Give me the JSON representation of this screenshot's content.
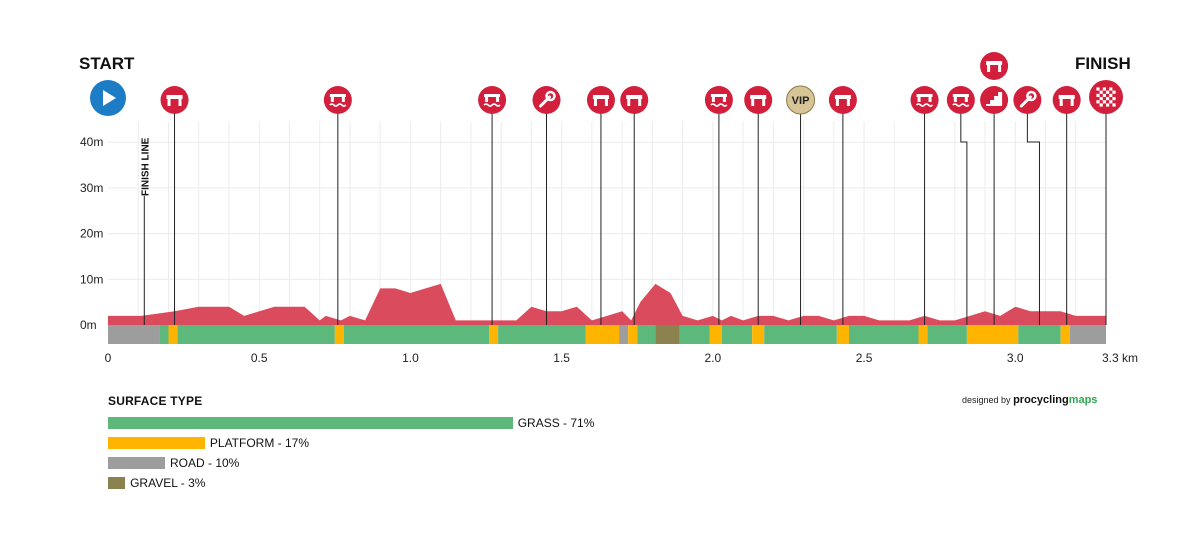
{
  "labels": {
    "start": "START",
    "finish": "FINISH",
    "finish_line": "FINISH LINE",
    "vip": "VIP"
  },
  "colors": {
    "profile": "#d6384b",
    "grass": "#5db87c",
    "platform": "#ffb400",
    "road": "#9d9d9d",
    "gravel": "#8b8250",
    "marker": "#d21f3c",
    "vip": "#d7c597",
    "start": "#1d7cc6"
  },
  "legend": {
    "title": "SURFACE TYPE",
    "items": [
      {
        "label": "GRASS - 71%",
        "percent": 71,
        "color": "#5db87c"
      },
      {
        "label": "PLATFORM - 17%",
        "percent": 17,
        "color": "#ffb400"
      },
      {
        "label": "ROAD - 10%",
        "percent": 10,
        "color": "#9d9d9d"
      },
      {
        "label": "GRAVEL - 3%",
        "percent": 3,
        "color": "#8b8250"
      }
    ]
  },
  "credit": {
    "prefix": "designed by",
    "brand_main": "procycling",
    "brand_accent": "maps"
  },
  "chart_data": {
    "type": "area",
    "xlabel": "",
    "ylabel": "",
    "xlim": [
      0,
      3.3
    ],
    "ylim": [
      0,
      45
    ],
    "x_ticks": [
      0,
      0.5,
      1.0,
      1.5,
      2.0,
      2.5,
      3.0,
      3.3
    ],
    "x_tick_labels": [
      "0",
      "0.5",
      "1.0",
      "1.5",
      "2.0",
      "2.5",
      "3.0",
      "3.3 km"
    ],
    "y_ticks": [
      0,
      10,
      20,
      30,
      40
    ],
    "y_tick_labels": [
      "0m",
      "10m",
      "20m",
      "30m",
      "40m"
    ],
    "grid": true,
    "profile": {
      "x": [
        0,
        0.11,
        0.22,
        0.3,
        0.4,
        0.45,
        0.55,
        0.65,
        0.7,
        0.72,
        0.77,
        0.8,
        0.85,
        0.9,
        0.95,
        1.0,
        1.05,
        1.1,
        1.15,
        1.35,
        1.4,
        1.45,
        1.5,
        1.55,
        1.6,
        1.65,
        1.7,
        1.73,
        1.76,
        1.81,
        1.86,
        1.9,
        1.95,
        2.0,
        2.03,
        2.06,
        2.1,
        2.15,
        2.2,
        2.25,
        2.3,
        2.35,
        2.4,
        2.45,
        2.5,
        2.55,
        2.6,
        2.65,
        2.7,
        2.75,
        2.8,
        2.85,
        2.9,
        2.95,
        3.0,
        3.05,
        3.1,
        3.15,
        3.2,
        3.3
      ],
      "y": [
        2,
        2,
        3,
        4,
        4,
        2,
        4,
        4,
        1,
        2,
        1,
        2,
        1,
        8,
        8,
        7,
        8,
        9,
        1,
        1,
        4,
        3,
        3,
        4,
        1,
        2,
        3,
        1,
        5,
        9,
        7,
        2,
        1,
        2,
        1,
        2,
        1,
        2,
        2,
        1,
        2,
        2,
        1,
        2,
        2,
        1,
        1,
        1,
        2,
        1,
        1,
        2,
        3,
        2,
        4,
        3,
        3,
        3,
        2,
        2
      ]
    },
    "surface": [
      {
        "from": 0,
        "to": 0.17,
        "type": "road"
      },
      {
        "from": 0.17,
        "to": 0.2,
        "type": "grass"
      },
      {
        "from": 0.2,
        "to": 0.23,
        "type": "platform"
      },
      {
        "from": 0.23,
        "to": 0.75,
        "type": "grass"
      },
      {
        "from": 0.75,
        "to": 0.78,
        "type": "platform"
      },
      {
        "from": 0.78,
        "to": 1.26,
        "type": "grass"
      },
      {
        "from": 1.26,
        "to": 1.29,
        "type": "platform"
      },
      {
        "from": 1.29,
        "to": 1.58,
        "type": "grass"
      },
      {
        "from": 1.58,
        "to": 1.69,
        "type": "platform"
      },
      {
        "from": 1.69,
        "to": 1.72,
        "type": "road"
      },
      {
        "from": 1.72,
        "to": 1.75,
        "type": "platform"
      },
      {
        "from": 1.75,
        "to": 1.81,
        "type": "grass"
      },
      {
        "from": 1.81,
        "to": 1.89,
        "type": "gravel"
      },
      {
        "from": 1.89,
        "to": 1.99,
        "type": "grass"
      },
      {
        "from": 1.99,
        "to": 2.03,
        "type": "platform"
      },
      {
        "from": 2.03,
        "to": 2.13,
        "type": "grass"
      },
      {
        "from": 2.13,
        "to": 2.17,
        "type": "platform"
      },
      {
        "from": 2.17,
        "to": 2.41,
        "type": "grass"
      },
      {
        "from": 2.41,
        "to": 2.45,
        "type": "platform"
      },
      {
        "from": 2.45,
        "to": 2.68,
        "type": "grass"
      },
      {
        "from": 2.68,
        "to": 2.71,
        "type": "platform"
      },
      {
        "from": 2.71,
        "to": 2.84,
        "type": "grass"
      },
      {
        "from": 2.84,
        "to": 3.01,
        "type": "platform"
      },
      {
        "from": 3.01,
        "to": 3.15,
        "type": "grass"
      },
      {
        "from": 3.15,
        "to": 3.18,
        "type": "platform"
      },
      {
        "from": 3.18,
        "to": 3.3,
        "type": "road"
      }
    ],
    "finish_line_km": 0.12,
    "markers": [
      {
        "km": 0,
        "icon": "play-icon",
        "kind": "start",
        "row": 0
      },
      {
        "km": 0.22,
        "icon": "barrier-icon",
        "kind": "barrier",
        "row": 0
      },
      {
        "km": 0.76,
        "icon": "water-bridge-icon",
        "kind": "barrier",
        "row": 0
      },
      {
        "km": 1.27,
        "icon": "water-bridge-icon",
        "kind": "barrier",
        "row": 0
      },
      {
        "km": 1.45,
        "icon": "wrench-icon",
        "kind": "pit",
        "row": 0
      },
      {
        "km": 1.63,
        "icon": "barrier-icon",
        "kind": "barrier",
        "row": 0
      },
      {
        "km": 1.74,
        "icon": "barrier-icon",
        "kind": "barrier",
        "row": 0
      },
      {
        "km": 2.02,
        "icon": "water-bridge-icon",
        "kind": "barrier",
        "row": 0
      },
      {
        "km": 2.15,
        "icon": "barrier-icon",
        "kind": "barrier",
        "row": 0
      },
      {
        "km": 2.29,
        "icon": "vip-icon",
        "kind": "vip",
        "row": 0
      },
      {
        "km": 2.43,
        "icon": "barrier-icon",
        "kind": "barrier",
        "row": 0
      },
      {
        "km": 2.7,
        "icon": "water-bridge-icon",
        "kind": "barrier",
        "row": 0
      },
      {
        "km": 2.84,
        "icon": "water-bridge-icon",
        "kind": "barrier",
        "row": 0,
        "draw_km": 2.82
      },
      {
        "km": 2.93,
        "icon": "stairs-icon",
        "kind": "stairs",
        "row": 0
      },
      {
        "km": 2.93,
        "icon": "barrier-icon",
        "kind": "barrier",
        "row": 1
      },
      {
        "km": 3.08,
        "icon": "wrench-icon",
        "kind": "pit",
        "row": 0,
        "draw_km": 3.04
      },
      {
        "km": 3.17,
        "icon": "barrier-icon",
        "kind": "barrier",
        "row": 0
      },
      {
        "km": 3.3,
        "icon": "checkered-flag-icon",
        "kind": "finish",
        "row": 0
      }
    ]
  }
}
